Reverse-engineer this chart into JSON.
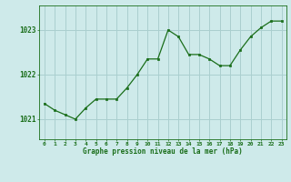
{
  "hours": [
    0,
    1,
    2,
    3,
    4,
    5,
    6,
    7,
    8,
    9,
    10,
    11,
    12,
    13,
    14,
    15,
    16,
    17,
    18,
    19,
    20,
    21,
    22,
    23
  ],
  "pressure": [
    1021.35,
    1021.2,
    1021.1,
    1021.0,
    1021.25,
    1021.45,
    1021.45,
    1021.45,
    1021.7,
    1022.0,
    1022.35,
    1022.35,
    1023.0,
    1022.85,
    1022.45,
    1022.45,
    1022.35,
    1022.2,
    1022.2,
    1022.55,
    1022.85,
    1023.05,
    1023.2,
    1023.2
  ],
  "line_color": "#1a6e1a",
  "marker_color": "#1a6e1a",
  "bg_color": "#ceeaea",
  "grid_color": "#aacfcf",
  "xlabel": "Graphe pression niveau de la mer (hPa)",
  "xlabel_color": "#1a6e1a",
  "tick_color": "#1a6e1a",
  "ytick_labels": [
    1021,
    1022,
    1023
  ],
  "ylim": [
    1020.55,
    1023.55
  ],
  "xlim": [
    -0.5,
    23.5
  ],
  "xtick_labels": [
    "0",
    "1",
    "2",
    "3",
    "4",
    "5",
    "6",
    "7",
    "8",
    "9",
    "10",
    "11",
    "12",
    "13",
    "14",
    "15",
    "16",
    "17",
    "18",
    "19",
    "20",
    "21",
    "22",
    "23"
  ]
}
